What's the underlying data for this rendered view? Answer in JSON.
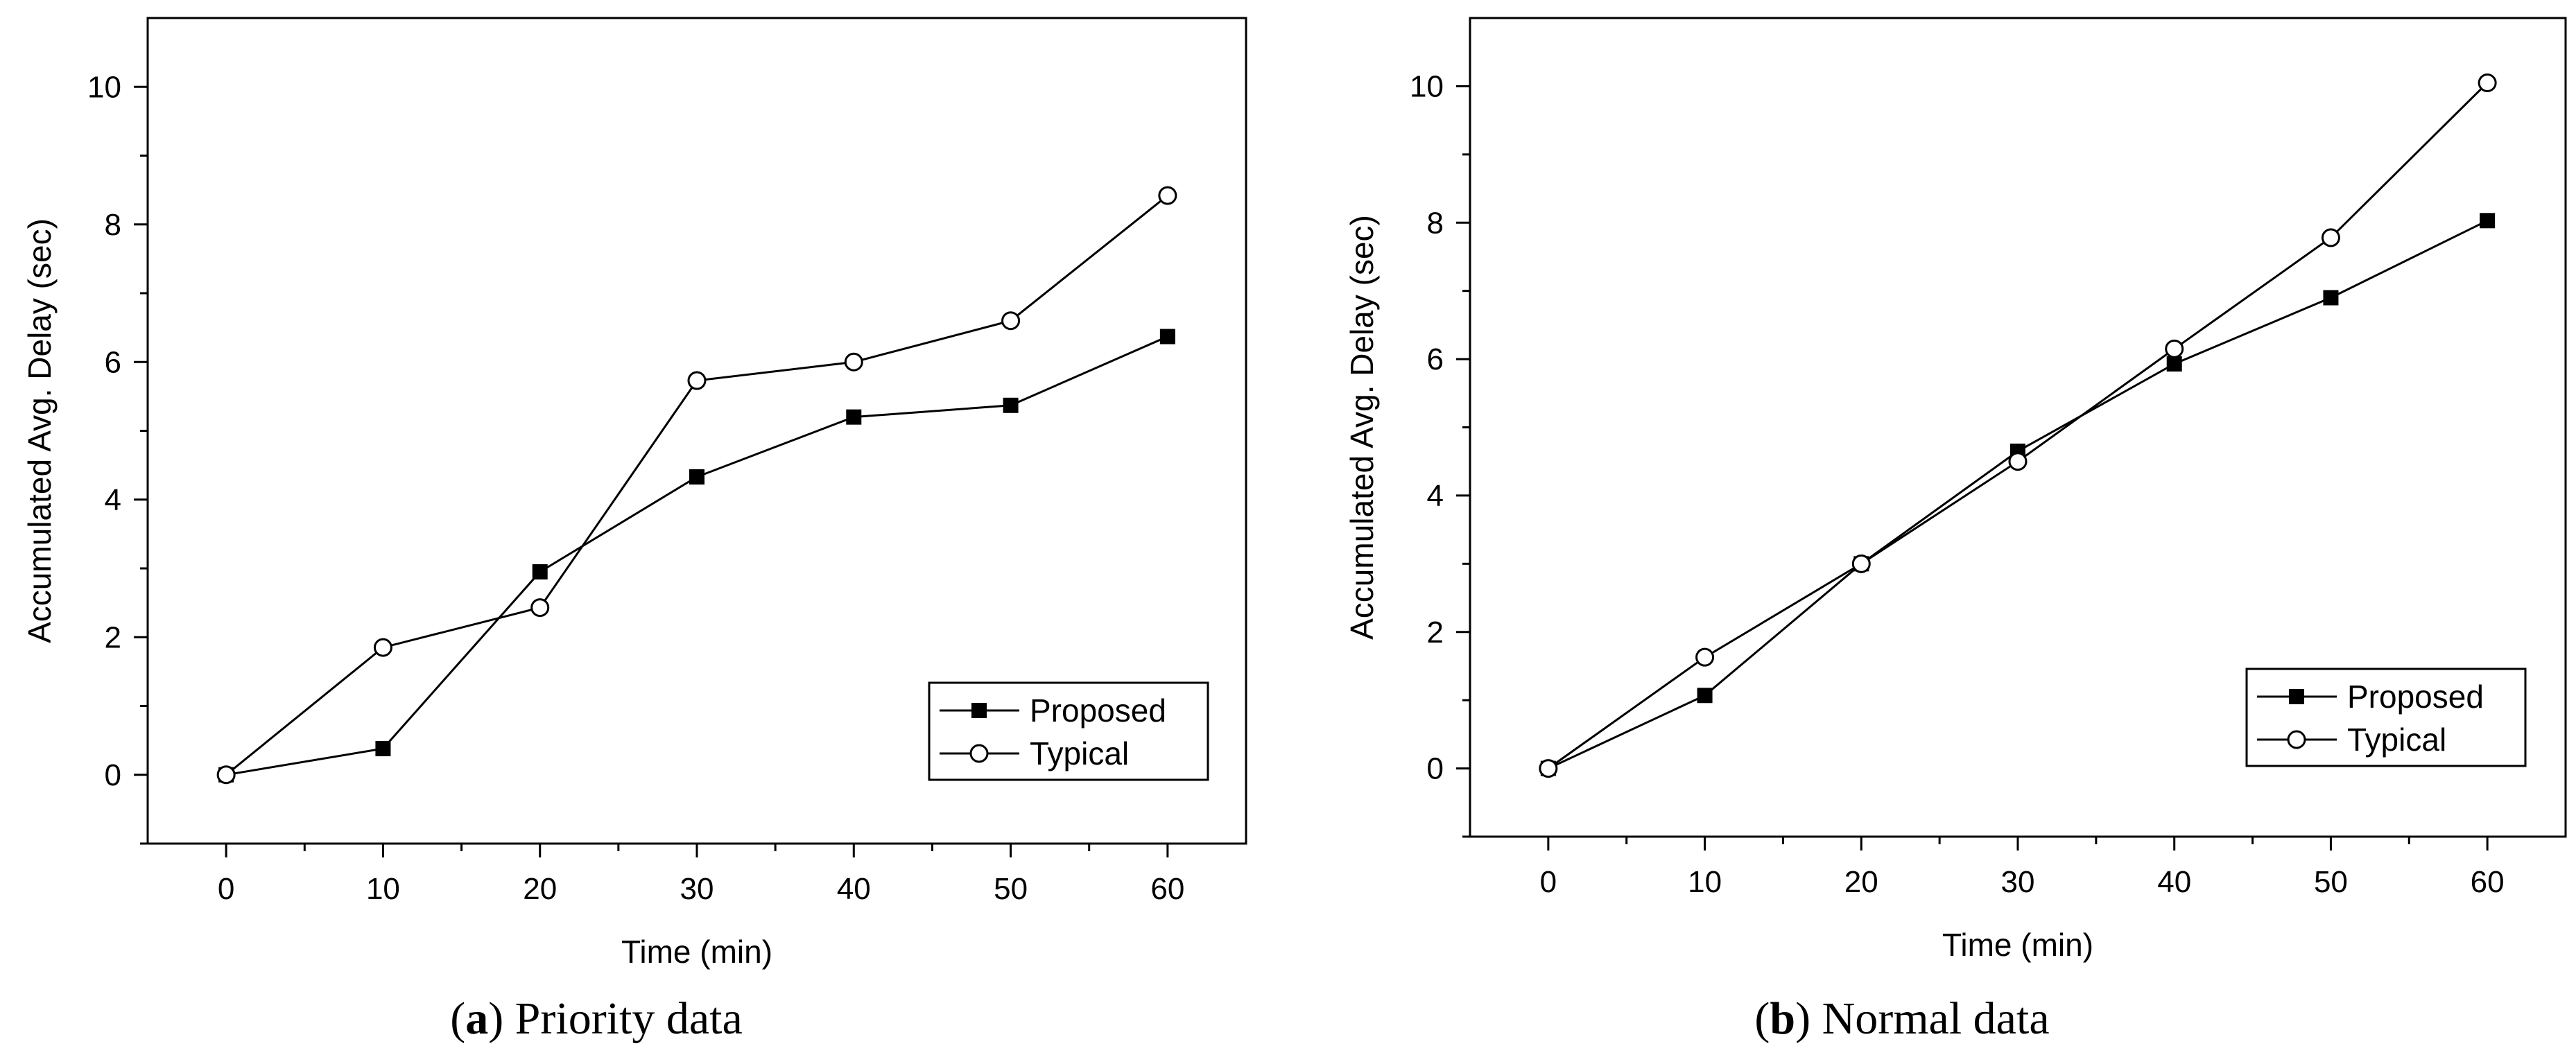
{
  "chart_data": [
    {
      "type": "line",
      "caption": {
        "prefix": "(",
        "letter": "a",
        "suffix": ") Priority data"
      },
      "xlabel": "Time (min)",
      "ylabel": "Accumulated Avg. Delay (sec)",
      "xlim": [
        -5,
        65
      ],
      "ylim": [
        -1,
        11
      ],
      "xticks": [
        0,
        10,
        20,
        30,
        40,
        50,
        60
      ],
      "yticks": [
        0,
        2,
        4,
        6,
        8,
        10
      ],
      "grid": false,
      "legend_position": "bottom-right",
      "x": [
        0,
        10,
        20,
        30,
        40,
        50,
        60
      ],
      "series": [
        {
          "name": "Proposed",
          "marker": "filled-square",
          "values": [
            0,
            0.38,
            2.95,
            4.33,
            5.2,
            5.37,
            6.37
          ]
        },
        {
          "name": "Typical",
          "marker": "open-circle",
          "values": [
            0,
            1.85,
            2.43,
            5.73,
            6.0,
            6.6,
            8.42
          ]
        }
      ]
    },
    {
      "type": "line",
      "caption": {
        "prefix": "(",
        "letter": "b",
        "suffix": ") Normal data"
      },
      "xlabel": "Time (min)",
      "ylabel": "Accumulated Avg. Delay (sec)",
      "xlim": [
        -5,
        65
      ],
      "ylim": [
        -1,
        11
      ],
      "xticks": [
        0,
        10,
        20,
        30,
        40,
        50,
        60
      ],
      "yticks": [
        0,
        2,
        4,
        6,
        8,
        10
      ],
      "grid": false,
      "legend_position": "bottom-right",
      "x": [
        0,
        10,
        20,
        30,
        40,
        50,
        60
      ],
      "series": [
        {
          "name": "Proposed",
          "marker": "filled-square",
          "values": [
            0,
            1.07,
            3.0,
            4.65,
            5.93,
            6.9,
            8.03
          ]
        },
        {
          "name": "Typical",
          "marker": "open-circle",
          "values": [
            0,
            1.63,
            3.0,
            4.5,
            6.15,
            7.78,
            10.05
          ]
        }
      ]
    }
  ]
}
